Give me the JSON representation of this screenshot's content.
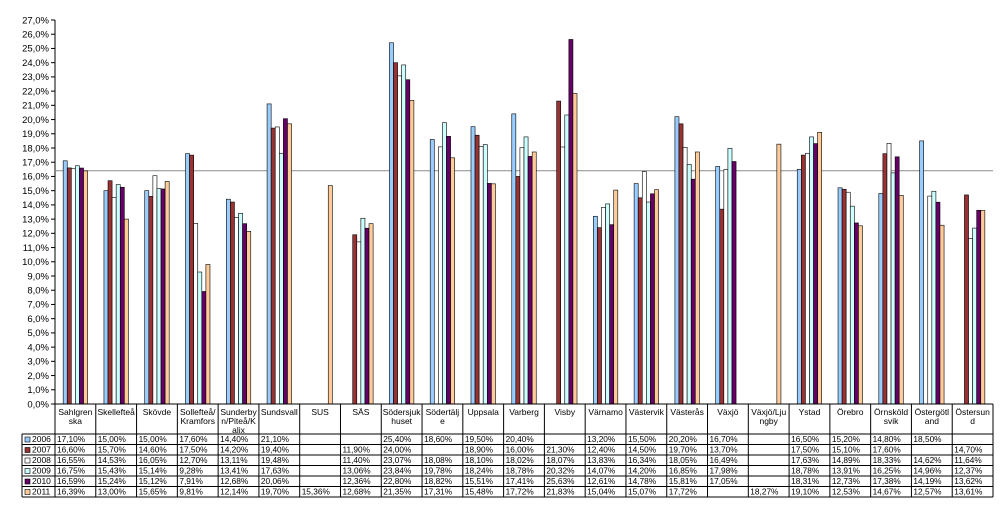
{
  "chart_data": {
    "type": "bar",
    "title": "",
    "xlabel": "",
    "ylabel": "",
    "ylim": [
      0,
      27
    ],
    "y_ticks": [
      "0,0%",
      "1,0%",
      "2,0%",
      "3,0%",
      "4,0%",
      "5,0%",
      "6,0%",
      "7,0%",
      "8,0%",
      "9,0%",
      "10,0%",
      "11,0%",
      "12,0%",
      "13,0%",
      "14,0%",
      "15,0%",
      "16,0%",
      "17,0%",
      "18,0%",
      "19,0%",
      "20,0%",
      "21,0%",
      "22,0%",
      "23,0%",
      "24,0%",
      "25,0%",
      "26,0%",
      "27,0%"
    ],
    "reference_line": 16.4,
    "grid": false,
    "legend": "data-table",
    "categories": [
      "Sahlgrenska",
      "Skellefteå",
      "Skövde",
      "Sollefteå/Kramfors",
      "Sunderbyn/Piteå/Kalix",
      "Sundsvall",
      "SUS",
      "SÄS",
      "Södersjukhuset",
      "Södertälje",
      "Uppsala",
      "Varberg",
      "Visby",
      "Värnamo",
      "Västervik",
      "Västerås",
      "Växjö",
      "Växjö/Ljungby",
      "Ystad",
      "Örebro",
      "Örnsköldsvik",
      "Östergötland",
      "Östersund"
    ],
    "category_labels": [
      [
        "Sahlgren",
        "ska"
      ],
      [
        "Skellefteå"
      ],
      [
        "Skövde"
      ],
      [
        "Sollefteå/",
        "Kramfors"
      ],
      [
        "Sunderby",
        "n/Piteå/K",
        "alix"
      ],
      [
        "Sundsvall"
      ],
      [
        "SUS"
      ],
      [
        "SÄS"
      ],
      [
        "Södersjuk",
        "huset"
      ],
      [
        "Södertälj",
        "e"
      ],
      [
        "Uppsala"
      ],
      [
        "Varberg"
      ],
      [
        "Visby"
      ],
      [
        "Värnamo"
      ],
      [
        "Västervik"
      ],
      [
        "Västerås"
      ],
      [
        "Växjö"
      ],
      [
        "Växjö/Lju",
        "ngby"
      ],
      [
        "Ystad"
      ],
      [
        "Örebro"
      ],
      [
        "Örnsköld",
        "svik"
      ],
      [
        "Östergötl",
        "and"
      ],
      [
        "Östersun",
        "d"
      ]
    ],
    "series": [
      {
        "name": "2006",
        "color": "#99ccff",
        "values": [
          17.1,
          15.0,
          15.0,
          17.6,
          14.4,
          21.1,
          null,
          null,
          25.4,
          18.6,
          19.5,
          20.4,
          null,
          13.2,
          15.5,
          20.2,
          16.7,
          null,
          16.5,
          15.2,
          14.8,
          18.5,
          null
        ],
        "labels": [
          "17,10%",
          "15,00%",
          "15,00%",
          "17,60%",
          "14,40%",
          "21,10%",
          "",
          "",
          "25,40%",
          "18,60%",
          "19,50%",
          "20,40%",
          "",
          "13,20%",
          "15,50%",
          "20,20%",
          "16,70%",
          "",
          "16,50%",
          "15,20%",
          "14,80%",
          "18,50%",
          ""
        ]
      },
      {
        "name": "2007",
        "color": "#993333",
        "values": [
          16.6,
          15.7,
          14.6,
          17.5,
          14.2,
          19.4,
          null,
          11.9,
          24.0,
          null,
          18.9,
          16.0,
          21.3,
          12.4,
          14.5,
          19.7,
          13.7,
          null,
          17.5,
          15.1,
          17.6,
          null,
          14.7
        ],
        "labels": [
          "16,60%",
          "15,70%",
          "14,60%",
          "17,50%",
          "14,20%",
          "19,40%",
          "",
          "11,90%",
          "24,00%",
          "",
          "18,90%",
          "16,00%",
          "21,30%",
          "12,40%",
          "14,50%",
          "19,70%",
          "13,70%",
          "",
          "17,50%",
          "15,10%",
          "17,60%",
          "",
          "14,70%"
        ]
      },
      {
        "name": "2008",
        "color": "#ffffff",
        "values": [
          16.55,
          14.53,
          16.05,
          12.7,
          13.11,
          19.48,
          null,
          11.4,
          23.07,
          18.08,
          18.1,
          18.02,
          18.07,
          13.83,
          16.34,
          18.05,
          16.49,
          null,
          17.63,
          14.89,
          18.33,
          14.62,
          11.64
        ],
        "labels": [
          "16,55%",
          "14,53%",
          "16,05%",
          "12,70%",
          "13,11%",
          "19,48%",
          "",
          "11,40%",
          "23,07%",
          "18,08%",
          "18,10%",
          "18,02%",
          "18,07%",
          "13,83%",
          "16,34%",
          "18,05%",
          "16,49%",
          "",
          "17,63%",
          "14,89%",
          "18,33%",
          "14,62%",
          "11,64%"
        ]
      },
      {
        "name": "2009",
        "color": "#ccffff",
        "values": [
          16.75,
          15.43,
          15.14,
          9.28,
          13.41,
          17.63,
          null,
          13.06,
          23.84,
          19.78,
          18.24,
          18.78,
          20.32,
          14.07,
          14.2,
          16.85,
          17.98,
          null,
          18.78,
          13.91,
          16.25,
          14.96,
          12.37
        ],
        "labels": [
          "16,75%",
          "15,43%",
          "15,14%",
          "9,28%",
          "13,41%",
          "17,63%",
          "",
          "13,06%",
          "23,84%",
          "19,78%",
          "18,24%",
          "18,78%",
          "20,32%",
          "14,07%",
          "14,20%",
          "16,85%",
          "17,98%",
          "",
          "18,78%",
          "13,91%",
          "16,25%",
          "14,96%",
          "12,37%"
        ]
      },
      {
        "name": "2010",
        "color": "#660066",
        "values": [
          16.59,
          15.24,
          15.12,
          7.91,
          12.68,
          20.06,
          null,
          12.36,
          22.8,
          18.82,
          15.51,
          17.41,
          25.63,
          12.61,
          14.78,
          15.81,
          17.05,
          null,
          18.31,
          12.73,
          17.38,
          14.19,
          13.62
        ],
        "labels": [
          "16,59%",
          "15,24%",
          "15,12%",
          "7,91%",
          "12,68%",
          "20,06%",
          "",
          "12,36%",
          "22,80%",
          "18,82%",
          "15,51%",
          "17,41%",
          "25,63%",
          "12,61%",
          "14,78%",
          "15,81%",
          "17,05%",
          "",
          "18,31%",
          "12,73%",
          "17,38%",
          "14,19%",
          "13,62%"
        ]
      },
      {
        "name": "2011",
        "color": "#ffcc99",
        "values": [
          16.39,
          13.0,
          15.65,
          9.81,
          12.14,
          19.7,
          15.36,
          12.68,
          21.35,
          17.31,
          15.48,
          17.72,
          21.83,
          15.04,
          15.07,
          17.72,
          null,
          18.27,
          19.1,
          12.53,
          14.67,
          12.57,
          13.61
        ],
        "labels": [
          "16,39%",
          "13,00%",
          "15,65%",
          "9,81%",
          "12,14%",
          "19,70%",
          "15,36%",
          "12,68%",
          "21,35%",
          "17,31%",
          "15,48%",
          "17,72%",
          "21,83%",
          "15,04%",
          "15,07%",
          "17,72%",
          "",
          "18,27%",
          "19,10%",
          "12,53%",
          "14,67%",
          "12,57%",
          "13,61%"
        ]
      }
    ]
  }
}
